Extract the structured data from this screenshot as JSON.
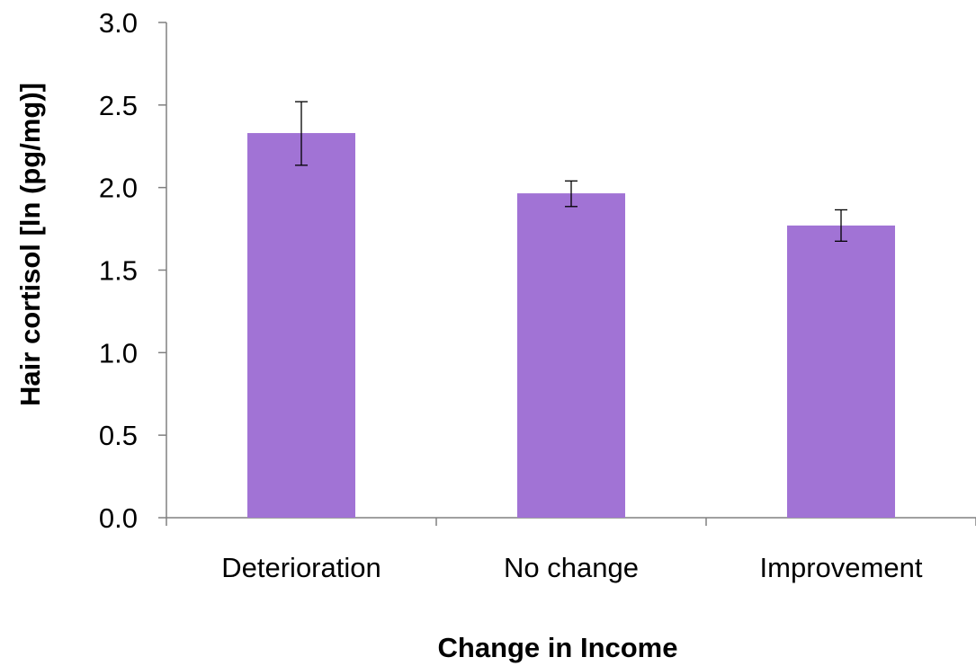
{
  "chart_data": {
    "type": "bar",
    "title": "",
    "xlabel": "Change in Income",
    "ylabel": "Hair cortisol [ln (pg/mg)]",
    "categories": [
      "Deterioration",
      "No change",
      "Improvement"
    ],
    "values": [
      2.33,
      1.965,
      1.77
    ],
    "error_low": [
      2.135,
      1.885,
      1.675
    ],
    "error_high": [
      2.52,
      2.04,
      1.865
    ],
    "ylim": [
      0,
      3.0
    ],
    "yticks": [
      0.0,
      0.5,
      1.0,
      1.5,
      2.0,
      2.5,
      3.0
    ],
    "ytick_labels": [
      "0.0",
      "0.5",
      "1.0",
      "1.5",
      "2.0",
      "2.5",
      "3.0"
    ],
    "grid": false,
    "legend": "none",
    "colors": {
      "bar": "#a173d5",
      "axis": "#808080",
      "error_bar": "#000000"
    }
  }
}
